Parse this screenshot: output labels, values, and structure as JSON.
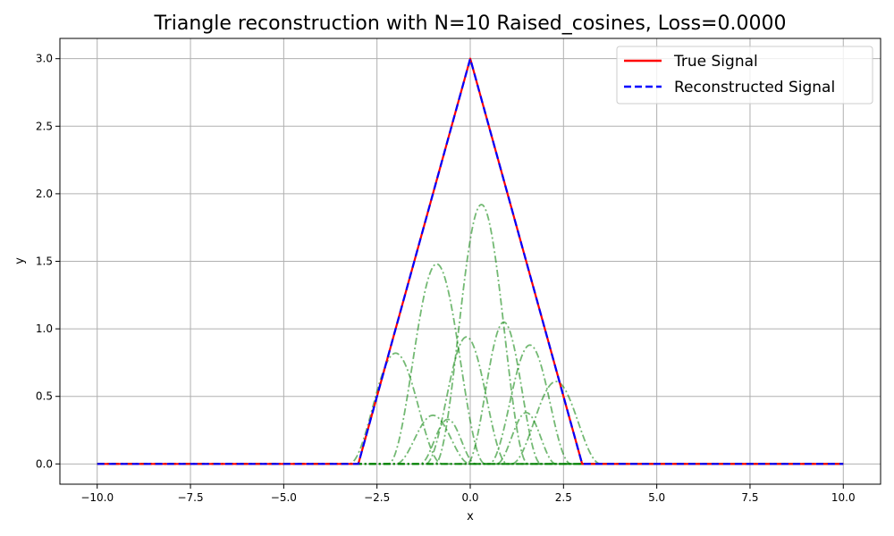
{
  "chart_data": {
    "type": "line",
    "title": "Triangle reconstruction with N=10 Raised_cosines, Loss=0.0000",
    "xlabel": "x",
    "ylabel": "y",
    "xlim": [
      -11,
      11
    ],
    "ylim": [
      -0.15,
      3.15
    ],
    "xticks": [
      -10.0,
      -7.5,
      -5.0,
      -2.5,
      0.0,
      2.5,
      5.0,
      7.5,
      10.0
    ],
    "xtick_labels": [
      "−10.0",
      "−7.5",
      "−5.0",
      "−2.5",
      "0.0",
      "2.5",
      "5.0",
      "7.5",
      "10.0"
    ],
    "yticks": [
      0.0,
      0.5,
      1.0,
      1.5,
      2.0,
      2.5,
      3.0
    ],
    "ytick_labels": [
      "0.0",
      "0.5",
      "1.0",
      "1.5",
      "2.0",
      "2.5",
      "3.0"
    ],
    "grid": true,
    "legend_position": "top-right",
    "colors": {
      "true": "#ff0000",
      "recon": "#0000ff",
      "basis": "#008000"
    },
    "series": [
      {
        "name": "True Signal",
        "style": "solid",
        "x": [
          -10,
          -3,
          0,
          3,
          10
        ],
        "y": [
          0,
          0,
          3,
          0,
          0
        ]
      },
      {
        "name": "Reconstructed Signal",
        "style": "dashed",
        "x": [
          -10,
          -3,
          0,
          3,
          10
        ],
        "y": [
          0,
          0,
          3,
          0,
          0
        ]
      }
    ],
    "basis_functions": [
      {
        "center": -2.0,
        "amplitude": 0.82,
        "width": 1.25
      },
      {
        "center": -1.0,
        "amplitude": 0.36,
        "width": 1.0
      },
      {
        "center": -0.9,
        "amplitude": 1.48,
        "width": 1.3
      },
      {
        "center": -0.6,
        "amplitude": 0.33,
        "width": 0.75
      },
      {
        "center": -0.1,
        "amplitude": 0.94,
        "width": 1.1
      },
      {
        "center": 0.3,
        "amplitude": 1.92,
        "width": 1.25
      },
      {
        "center": 0.9,
        "amplitude": 1.05,
        "width": 1.0
      },
      {
        "center": 1.5,
        "amplitude": 0.38,
        "width": 0.8
      },
      {
        "center": 1.6,
        "amplitude": 0.88,
        "width": 1.1
      },
      {
        "center": 2.3,
        "amplitude": 0.61,
        "width": 1.2
      }
    ]
  }
}
